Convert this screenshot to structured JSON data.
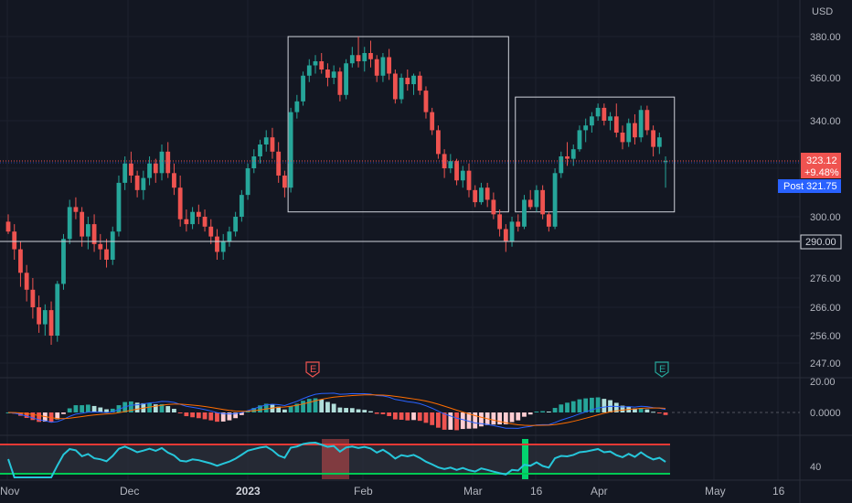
{
  "chart_data": {
    "type": "candlestick",
    "currency": "USD",
    "price_axis_ticks": [
      380.0,
      360.0,
      340.0,
      320.0,
      300.0,
      290.0,
      276.0,
      266.0,
      256.0,
      247.0
    ],
    "price_axis_labels": [
      "380.00",
      "360.00",
      "340.00",
      "300.00",
      "276.00",
      "266.00",
      "256.00",
      "247.00"
    ],
    "x_labels": [
      "Nov",
      "Dec",
      "2023",
      "Feb",
      "Mar",
      "16",
      "Apr",
      "May",
      "16"
    ],
    "last_price": "323.12",
    "change_pct": "+9.48%",
    "post_label": "Post",
    "post_price": "321.75",
    "horizontal_line_label": "290.00",
    "horizontal_line_value": 290.0,
    "earnings_markers": [
      "E",
      "E"
    ],
    "macd_axis_labels": [
      "20.00",
      "0.0000"
    ],
    "rsi_axis_label": "40",
    "colors": {
      "up": "#26a69a",
      "down": "#ef5350",
      "background": "#131722",
      "macd": "#2962ff",
      "signal": "#ff6d00",
      "rsi": "#26c6da"
    },
    "candles": [
      [
        298,
        301,
        293,
        294
      ],
      [
        294,
        297,
        283,
        287
      ],
      [
        287,
        290,
        273,
        278
      ],
      [
        278,
        281,
        268,
        272
      ],
      [
        272,
        276,
        262,
        266
      ],
      [
        266,
        270,
        257,
        260
      ],
      [
        260,
        267,
        256,
        265
      ],
      [
        265,
        268,
        253,
        256
      ],
      [
        256,
        275,
        254,
        274
      ],
      [
        274,
        293,
        272,
        291
      ],
      [
        291,
        307,
        289,
        304
      ],
      [
        304,
        308,
        299,
        302
      ],
      [
        302,
        304,
        288,
        292
      ],
      [
        292,
        300,
        287,
        297
      ],
      [
        297,
        301,
        286,
        289
      ],
      [
        289,
        293,
        283,
        287
      ],
      [
        287,
        291,
        280,
        283
      ],
      [
        283,
        296,
        281,
        294
      ],
      [
        294,
        317,
        292,
        314
      ],
      [
        314,
        325,
        311,
        322
      ],
      [
        322,
        327,
        314,
        317
      ],
      [
        317,
        319,
        308,
        311
      ],
      [
        311,
        319,
        307,
        316
      ],
      [
        316,
        325,
        313,
        322
      ],
      [
        322,
        324,
        314,
        318
      ],
      [
        318,
        330,
        315,
        327
      ],
      [
        327,
        331,
        316,
        318
      ],
      [
        318,
        322,
        309,
        312
      ],
      [
        312,
        317,
        296,
        299
      ],
      [
        299,
        303,
        294,
        297
      ],
      [
        297,
        304,
        295,
        302
      ],
      [
        302,
        305,
        297,
        300
      ],
      [
        300,
        303,
        294,
        296
      ],
      [
        296,
        299,
        289,
        292
      ],
      [
        292,
        295,
        283,
        286
      ],
      [
        286,
        293,
        283,
        290
      ],
      [
        290,
        296,
        288,
        294
      ],
      [
        294,
        302,
        292,
        300
      ],
      [
        300,
        311,
        298,
        309
      ],
      [
        309,
        322,
        307,
        320
      ],
      [
        320,
        328,
        318,
        325
      ],
      [
        325,
        332,
        322,
        330
      ],
      [
        330,
        336,
        327,
        333
      ],
      [
        333,
        337,
        324,
        327
      ],
      [
        327,
        331,
        314,
        317
      ],
      [
        317,
        319,
        308,
        312
      ],
      [
        312,
        346,
        310,
        344
      ],
      [
        344,
        352,
        341,
        349
      ],
      [
        349,
        363,
        347,
        361
      ],
      [
        361,
        369,
        358,
        366
      ],
      [
        366,
        371,
        362,
        368
      ],
      [
        368,
        372,
        362,
        364
      ],
      [
        364,
        367,
        356,
        360
      ],
      [
        360,
        366,
        357,
        363
      ],
      [
        363,
        365,
        349,
        352
      ],
      [
        352,
        369,
        350,
        367
      ],
      [
        367,
        375,
        365,
        371
      ],
      [
        371,
        380,
        365,
        368
      ],
      [
        368,
        375,
        363,
        372
      ],
      [
        372,
        378,
        365,
        369
      ],
      [
        369,
        371,
        358,
        361
      ],
      [
        361,
        372,
        358,
        370
      ],
      [
        370,
        374,
        359,
        362
      ],
      [
        362,
        364,
        348,
        350
      ],
      [
        350,
        362,
        348,
        360
      ],
      [
        360,
        364,
        354,
        357
      ],
      [
        357,
        362,
        352,
        361
      ],
      [
        361,
        363,
        352,
        354
      ],
      [
        354,
        356,
        341,
        344
      ],
      [
        344,
        346,
        334,
        336
      ],
      [
        336,
        338,
        324,
        326
      ],
      [
        326,
        328,
        316,
        320
      ],
      [
        320,
        326,
        318,
        323
      ],
      [
        323,
        324,
        313,
        315
      ],
      [
        315,
        321,
        312,
        319
      ],
      [
        319,
        322,
        308,
        311
      ],
      [
        311,
        313,
        304,
        306
      ],
      [
        306,
        314,
        305,
        312
      ],
      [
        312,
        314,
        304,
        307
      ],
      [
        307,
        310,
        299,
        301
      ],
      [
        301,
        303,
        292,
        295
      ],
      [
        295,
        297,
        286,
        290
      ],
      [
        290,
        300,
        288,
        298
      ],
      [
        298,
        301,
        294,
        296
      ],
      [
        296,
        309,
        295,
        307
      ],
      [
        307,
        311,
        303,
        304
      ],
      [
        304,
        313,
        302,
        311
      ],
      [
        311,
        313,
        299,
        301
      ],
      [
        301,
        302,
        294,
        296
      ],
      [
        296,
        320,
        295,
        318
      ],
      [
        318,
        327,
        316,
        325
      ],
      [
        325,
        331,
        321,
        324
      ],
      [
        324,
        330,
        321,
        328
      ],
      [
        328,
        338,
        327,
        336
      ],
      [
        336,
        341,
        331,
        338
      ],
      [
        338,
        344,
        335,
        342
      ],
      [
        342,
        348,
        340,
        346
      ],
      [
        346,
        348,
        338,
        340
      ],
      [
        340,
        344,
        336,
        342
      ],
      [
        342,
        348,
        333,
        335
      ],
      [
        335,
        338,
        328,
        331
      ],
      [
        331,
        341,
        329,
        339
      ],
      [
        339,
        343,
        330,
        333
      ],
      [
        333,
        347,
        331,
        345
      ],
      [
        345,
        347,
        334,
        336
      ],
      [
        336,
        338,
        325,
        329
      ],
      [
        329,
        335,
        326,
        333
      ],
      [
        323,
        325,
        312,
        323
      ]
    ],
    "boxes": [
      {
        "start_index": 46,
        "end_index": 81,
        "top": 380,
        "bottom": 302
      },
      {
        "start_index": 83,
        "end_index": 108,
        "top": 351,
        "bottom": 302
      }
    ]
  }
}
